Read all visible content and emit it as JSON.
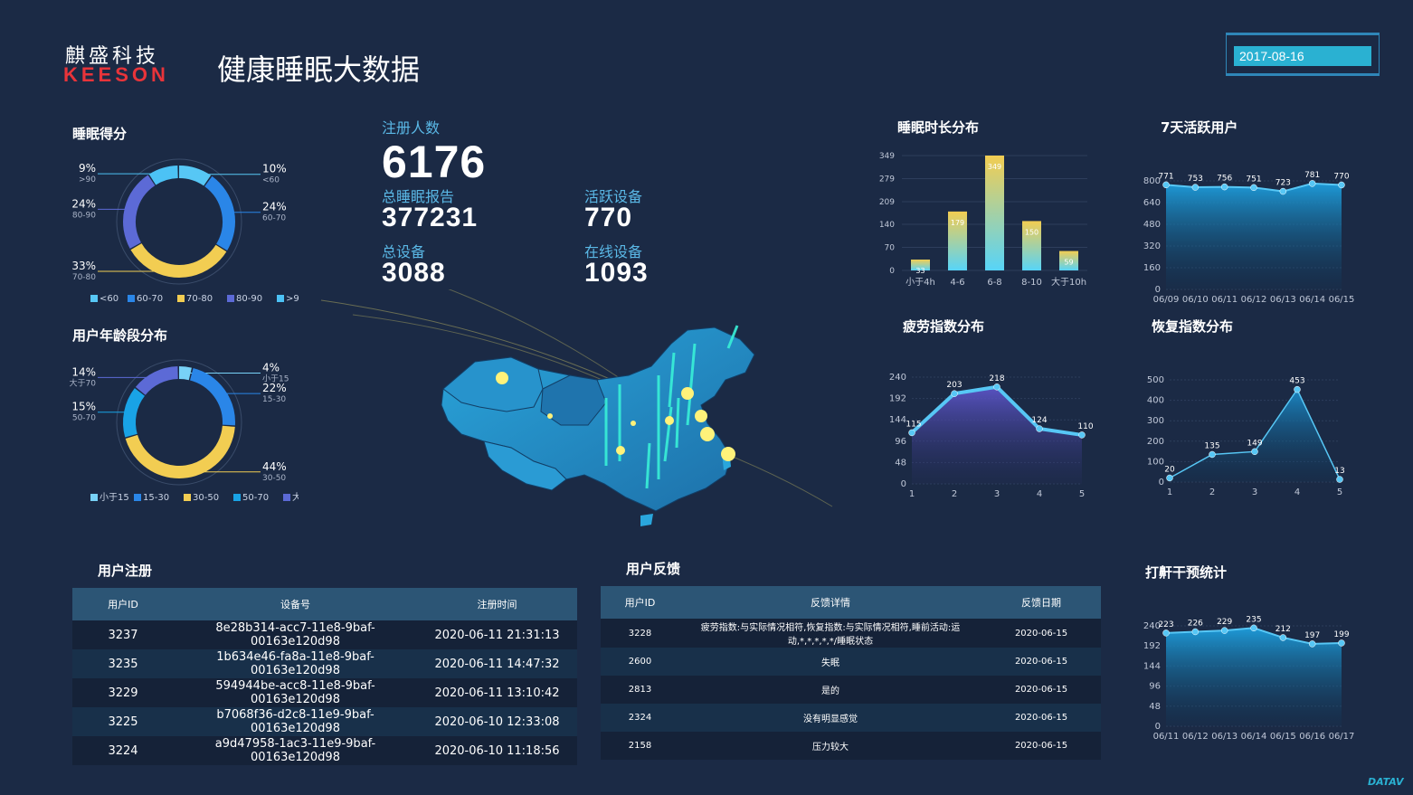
{
  "header": {
    "logo_cn": "麒盛科技",
    "logo_en": "KEESON",
    "title": "健康睡眠大数据",
    "date": "2017-08-16"
  },
  "kpi": {
    "registered_label": "注册人数",
    "registered_value": "6176",
    "reports_label": "总睡眠报告",
    "reports_value": "377231",
    "active_label": "活跃设备",
    "active_value": "770",
    "devices_label": "总设备",
    "devices_value": "3088",
    "online_label": "在线设备",
    "online_value": "1093"
  },
  "sleep_score": {
    "title": "睡眠得分",
    "slices": [
      {
        "label": "<60",
        "pct": "10%",
        "value": 10,
        "color": "#57c7f5"
      },
      {
        "label": "60-70",
        "pct": "24%",
        "value": 24,
        "color": "#2a86e8"
      },
      {
        "label": "70-80",
        "pct": "33%",
        "value": 33,
        "color": "#f2cd52"
      },
      {
        "label": "80-90",
        "pct": "24%",
        "value": 24,
        "color": "#5c6ad6"
      },
      {
        "label": ">90",
        "pct": "9%",
        "value": 9,
        "color": "#4cc2f5"
      }
    ]
  },
  "age_dist": {
    "title": "用户年龄段分布",
    "slices": [
      {
        "label": "小于15",
        "pct": "4%",
        "value": 4,
        "color": "#78d2f7"
      },
      {
        "label": "15-30",
        "pct": "22%",
        "value": 22,
        "color": "#2a86e8"
      },
      {
        "label": "30-50",
        "pct": "44%",
        "value": 44,
        "color": "#f2cd52"
      },
      {
        "label": "50-70",
        "pct": "15%",
        "value": 15,
        "color": "#19a3e6"
      },
      {
        "label": "大于70",
        "pct": "14%",
        "value": 14,
        "color": "#5c6ad6"
      }
    ]
  },
  "registrations": {
    "title": "用户注册",
    "columns": [
      "用户ID",
      "设备号",
      "注册时间"
    ],
    "rows": [
      [
        "3237",
        "8e28b314-acc7-11e8-9baf-00163e120d98",
        "2020-06-11 21:31:13"
      ],
      [
        "3235",
        "1b634e46-fa8a-11e8-9baf-00163e120d98",
        "2020-06-11 14:47:32"
      ],
      [
        "3229",
        "594944be-acc8-11e8-9baf-00163e120d98",
        "2020-06-11 13:10:42"
      ],
      [
        "3225",
        "b7068f36-d2c8-11e9-9baf-00163e120d98",
        "2020-06-10 12:33:08"
      ],
      [
        "3224",
        "a9d47958-1ac3-11e9-9baf-00163e120d98",
        "2020-06-10 11:18:56"
      ]
    ]
  },
  "feedback": {
    "title": "用户反馈",
    "columns": [
      "用户ID",
      "反馈详情",
      "反馈日期"
    ],
    "rows": [
      [
        "3228",
        "疲劳指数:与实际情况相符,恢复指数:与实际情况相符,睡前活动:运动,*,*,*,*,*/睡眠状态",
        "2020-06-15"
      ],
      [
        "2600",
        "失眠",
        "2020-06-15"
      ],
      [
        "2813",
        "是的",
        "2020-06-15"
      ],
      [
        "2324",
        "没有明显感觉",
        "2020-06-15"
      ],
      [
        "2158",
        "压力较大",
        "2020-06-15"
      ]
    ]
  },
  "chart_data": [
    {
      "id": "sleep_duration",
      "type": "bar",
      "title": "睡眠时长分布",
      "categories": [
        "小于4h",
        "4-6",
        "6-8",
        "8-10",
        "大于10h"
      ],
      "values": [
        33,
        179,
        349,
        150,
        59
      ],
      "yticks": [
        0,
        70,
        140,
        209,
        279,
        349
      ],
      "ylim": [
        0,
        349
      ]
    },
    {
      "id": "active_users",
      "type": "area",
      "title": "7天活跃用户",
      "categories": [
        "06/09",
        "06/10",
        "06/11",
        "06/12",
        "06/13",
        "06/14",
        "06/15"
      ],
      "values": [
        771,
        753,
        756,
        751,
        723,
        781,
        770
      ],
      "yticks": [
        0,
        160,
        320,
        480,
        640,
        800
      ],
      "ylim": [
        0,
        800
      ]
    },
    {
      "id": "fatigue",
      "type": "area",
      "title": "疲劳指数分布",
      "categories": [
        "1",
        "2",
        "3",
        "4",
        "5"
      ],
      "values": [
        115,
        203,
        218,
        124,
        110
      ],
      "yticks": [
        0,
        48,
        96,
        144,
        192,
        240
      ],
      "ylim": [
        0,
        240
      ]
    },
    {
      "id": "recovery",
      "type": "area",
      "title": "恢复指数分布",
      "categories": [
        "1",
        "2",
        "3",
        "4",
        "5"
      ],
      "values": [
        20,
        135,
        149,
        453,
        13
      ],
      "yticks": [
        0,
        100,
        200,
        300,
        400,
        500
      ],
      "ylim": [
        0,
        500
      ]
    },
    {
      "id": "snore",
      "type": "area",
      "title": "打鼾干预统计",
      "categories": [
        "06/11",
        "06/12",
        "06/13",
        "06/14",
        "06/15",
        "06/16",
        "06/17"
      ],
      "values": [
        223,
        226,
        229,
        235,
        212,
        197,
        199
      ],
      "yticks": [
        0,
        48,
        96,
        144,
        192,
        240
      ],
      "ylim": [
        0,
        240
      ]
    }
  ],
  "colors": {
    "background": "#1b2a45",
    "accent": "#2ab1d2",
    "kpi_label": "#5ab8e6",
    "bar_top": "#f2cd52",
    "bar_bottom": "#57d4f8",
    "area_blue": "#1e9fde",
    "area_purple": "#5c55c8",
    "area_line": "#57c7f5"
  },
  "footer": {
    "logo": "DATAV"
  }
}
